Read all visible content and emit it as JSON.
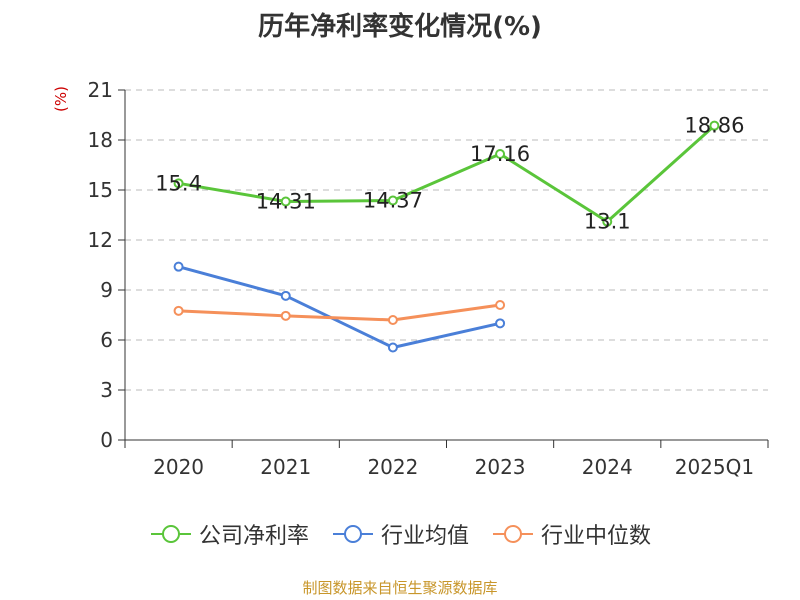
{
  "chart_data": {
    "type": "line",
    "title": "历年净利率变化情况(%)",
    "ylabel": "(%)",
    "categories": [
      "2020",
      "2021",
      "2022",
      "2023",
      "2024",
      "2025Q1"
    ],
    "ylim": [
      0,
      21
    ],
    "yticks": [
      0,
      3,
      6,
      9,
      12,
      15,
      18,
      21
    ],
    "grid": true,
    "legend_position": "bottom",
    "series": [
      {
        "name": "公司净利率",
        "color": "#5ac53a",
        "labels": true,
        "values": [
          15.4,
          14.31,
          14.37,
          17.16,
          13.1,
          18.86
        ]
      },
      {
        "name": "行业均值",
        "color": "#4a7fd8",
        "labels": false,
        "values": [
          10.4,
          8.65,
          5.55,
          7.0,
          null,
          null
        ]
      },
      {
        "name": "行业中位数",
        "color": "#f5905a",
        "labels": false,
        "values": [
          7.75,
          7.45,
          7.2,
          8.1,
          null,
          null
        ]
      }
    ]
  },
  "footer": {
    "source": "制图数据来自恒生聚源数据库"
  }
}
